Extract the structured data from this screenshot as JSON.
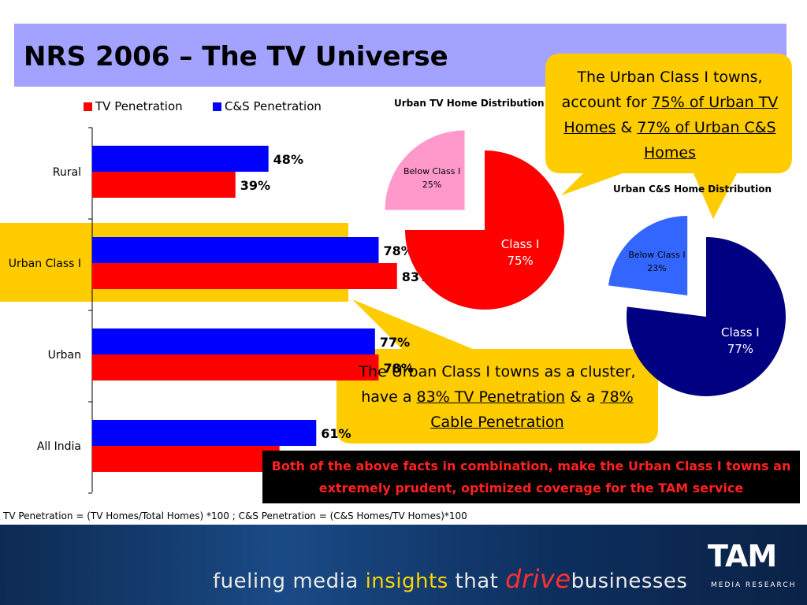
{
  "slide": {
    "title": "NRS 2006 – The TV Universe",
    "footnote": "TV Penetration = (TV Homes/Total Homes) *100 ; C&S Penetration = (C&S Homes/TV Homes)*100",
    "fact_box": "Both of the above facts in combination, make the Urban Class I towns an extremely prudent, optimized coverage for the TAM service",
    "callout_top": {
      "prefix": "The Urban Class I towns, account for ",
      "u1": "75% of Urban TV Homes",
      "mid": " & ",
      "u2": "77% of Urban C&S Homes"
    },
    "callout_bottom": {
      "prefix": "The Urban Class I towns as a cluster, have a ",
      "u1": "83% TV Penetration",
      "mid": " & a ",
      "u2": "78% Cable Penetration"
    },
    "tagline": {
      "p1": "fueling media ",
      "p2": "insights",
      "p3": " that ",
      "p4": "drive",
      "p5": "businesses"
    },
    "logo": {
      "name": "TAM",
      "sub": "MEDIA RESEARCH"
    },
    "colors": {
      "tv": "#ff0000",
      "cs": "#0000ff",
      "highlight": "#ffcc00",
      "title_band": "#a3a3ff"
    }
  },
  "chart_data": [
    {
      "type": "bar",
      "orientation": "horizontal",
      "categories": [
        "Rural",
        "Urban Class I",
        "Urban",
        "All India"
      ],
      "series": [
        {
          "name": "TV Penetration",
          "values": [
            39,
            83,
            78,
            51
          ],
          "labels": [
            "39%",
            "83%",
            "78%",
            "51%"
          ]
        },
        {
          "name": "C&S Penetration",
          "values": [
            48,
            78,
            77,
            61
          ],
          "labels": [
            "48%",
            "78%",
            "77%",
            "61%"
          ]
        }
      ],
      "xlim": [
        0,
        100
      ],
      "legend": "top"
    },
    {
      "type": "pie",
      "title": "Urban TV Home Distribution",
      "slices": [
        {
          "label": "Class I",
          "value": 75,
          "pct": "75%",
          "color": "#ff0000"
        },
        {
          "label": "Below Class I",
          "value": 25,
          "pct": "25%",
          "color": "#ff99cc"
        }
      ]
    },
    {
      "type": "pie",
      "title": "Urban C&S Home Distribution",
      "slices": [
        {
          "label": "Class I",
          "value": 77,
          "pct": "77%",
          "color": "#000080"
        },
        {
          "label": "Below Class I",
          "value": 23,
          "pct": "23%",
          "color": "#3366ff"
        }
      ]
    }
  ]
}
